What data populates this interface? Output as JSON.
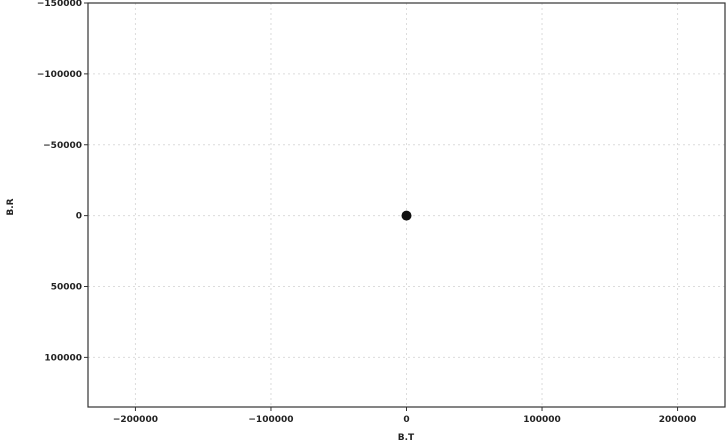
{
  "chart_data": {
    "type": "scatter",
    "title": "",
    "xlabel": "B.T",
    "ylabel": "B.R",
    "xlim": [
      -235000,
      235000
    ],
    "ylim": [
      -150000,
      135000
    ],
    "y_inverted": true,
    "grid": true,
    "x_ticks": [
      -200000,
      -100000,
      0,
      100000,
      200000
    ],
    "x_tick_labels": [
      "−200000",
      "−100000",
      "0",
      "100000",
      "200000"
    ],
    "y_ticks": [
      -150000,
      -100000,
      -50000,
      0,
      50000,
      100000
    ],
    "y_tick_labels": [
      "−150000",
      "−100000",
      "−50000",
      "0",
      "50000",
      "100000"
    ],
    "series": [
      {
        "points": [
          {
            "x": 0,
            "y": 0
          }
        ],
        "color": "#111111"
      }
    ]
  }
}
